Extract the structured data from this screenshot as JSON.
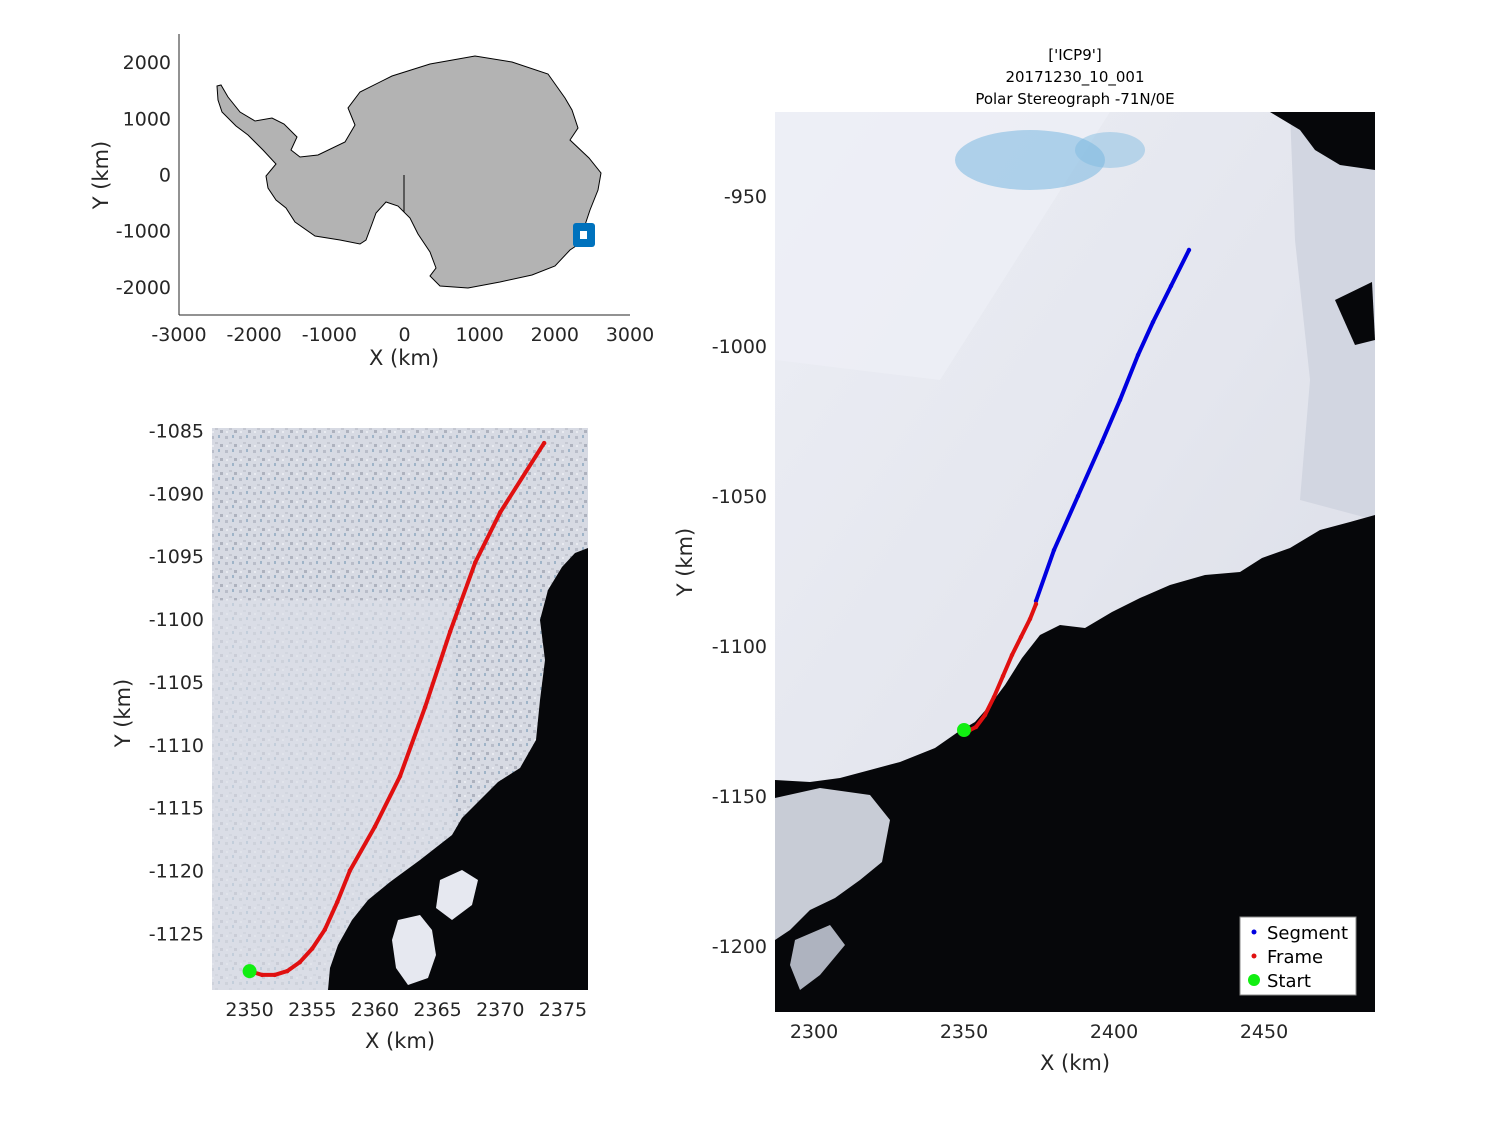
{
  "title": {
    "line1": "['ICP9']",
    "line2": "20171230_10_001",
    "line3": "Polar Stereograph -71N/0E"
  },
  "overview": {
    "xlabel": "X (km)",
    "ylabel": "Y (km)",
    "xticks": [
      "-3000",
      "-2000",
      "-1000",
      "0",
      "1000",
      "2000",
      "3000"
    ],
    "yticks": [
      "2000",
      "1000",
      "0",
      "-1000",
      "-2000"
    ],
    "land_color": "#b3b3b3",
    "marker_color": "#0072bd"
  },
  "zoom": {
    "xlabel": "X (km)",
    "ylabel": "Y (km)",
    "xticks": [
      "2350",
      "2355",
      "2360",
      "2365",
      "2370",
      "2375"
    ],
    "yticks": [
      "-1085",
      "-1090",
      "-1095",
      "-1100",
      "-1105",
      "-1110",
      "-1115",
      "-1120",
      "-1125"
    ]
  },
  "main": {
    "xlabel": "X (km)",
    "ylabel": "Y (km)",
    "xticks": [
      "2300",
      "2350",
      "2400",
      "2450"
    ],
    "yticks": [
      "-950",
      "-1000",
      "-1050",
      "-1100",
      "-1150",
      "-1200"
    ]
  },
  "legend": {
    "segment": "Segment",
    "frame": "Frame",
    "start": "Start"
  },
  "colors": {
    "segment": "#0000e0",
    "frame": "#e01010",
    "start": "#11ee11",
    "ice": "#e6e8f0",
    "ocean": "#06070a",
    "melt": "#7ab8e0"
  },
  "chart_data": [
    {
      "type": "scatter",
      "panel": "overview",
      "xlabel": "X (km)",
      "ylabel": "Y (km)",
      "xlim": [
        -3000,
        3000
      ],
      "ylim": [
        -2500,
        2500
      ],
      "series": [
        {
          "name": "Segment",
          "x": [
            2350,
            2425
          ],
          "y": [
            -1128,
            -968
          ]
        }
      ]
    },
    {
      "type": "scatter",
      "panel": "zoom",
      "xlabel": "X (km)",
      "ylabel": "Y (km)",
      "xlim": [
        2347,
        2377
      ],
      "ylim": [
        -1129.5,
        -1084.8
      ],
      "series": [
        {
          "name": "Frame",
          "x": [
            2350,
            2351,
            2352,
            2353,
            2354,
            2355,
            2356,
            2357,
            2358,
            2360,
            2362,
            2364,
            2366,
            2368,
            2370,
            2373.5
          ],
          "y": [
            -1128,
            -1128.3,
            -1128.3,
            -1128,
            -1127.3,
            -1126.2,
            -1124.7,
            -1122.5,
            -1120,
            -1116.5,
            -1112.5,
            -1107,
            -1101,
            -1095.5,
            -1091.5,
            -1086
          ]
        },
        {
          "name": "Start",
          "x": [
            2350
          ],
          "y": [
            -1128
          ]
        }
      ]
    },
    {
      "type": "scatter",
      "panel": "main",
      "xlabel": "X (km)",
      "ylabel": "Y (km)",
      "xlim": [
        2287,
        2487
      ],
      "ylim": [
        -1222,
        -922
      ],
      "series": [
        {
          "name": "Segment",
          "x": [
            2374,
            2380,
            2388,
            2396,
            2402,
            2408,
            2413,
            2419,
            2425
          ],
          "y": [
            -1085,
            -1068,
            -1050,
            -1032,
            -1018,
            -1003,
            -992,
            -980,
            -968
          ]
        },
        {
          "name": "Frame",
          "x": [
            2352,
            2354,
            2357,
            2360,
            2363,
            2366,
            2369,
            2372,
            2374
          ],
          "y": [
            -1128,
            -1127,
            -1123,
            -1117,
            -1110,
            -1103,
            -1097,
            -1091,
            -1086
          ]
        },
        {
          "name": "Start",
          "x": [
            2350
          ],
          "y": [
            -1128
          ]
        }
      ]
    }
  ]
}
